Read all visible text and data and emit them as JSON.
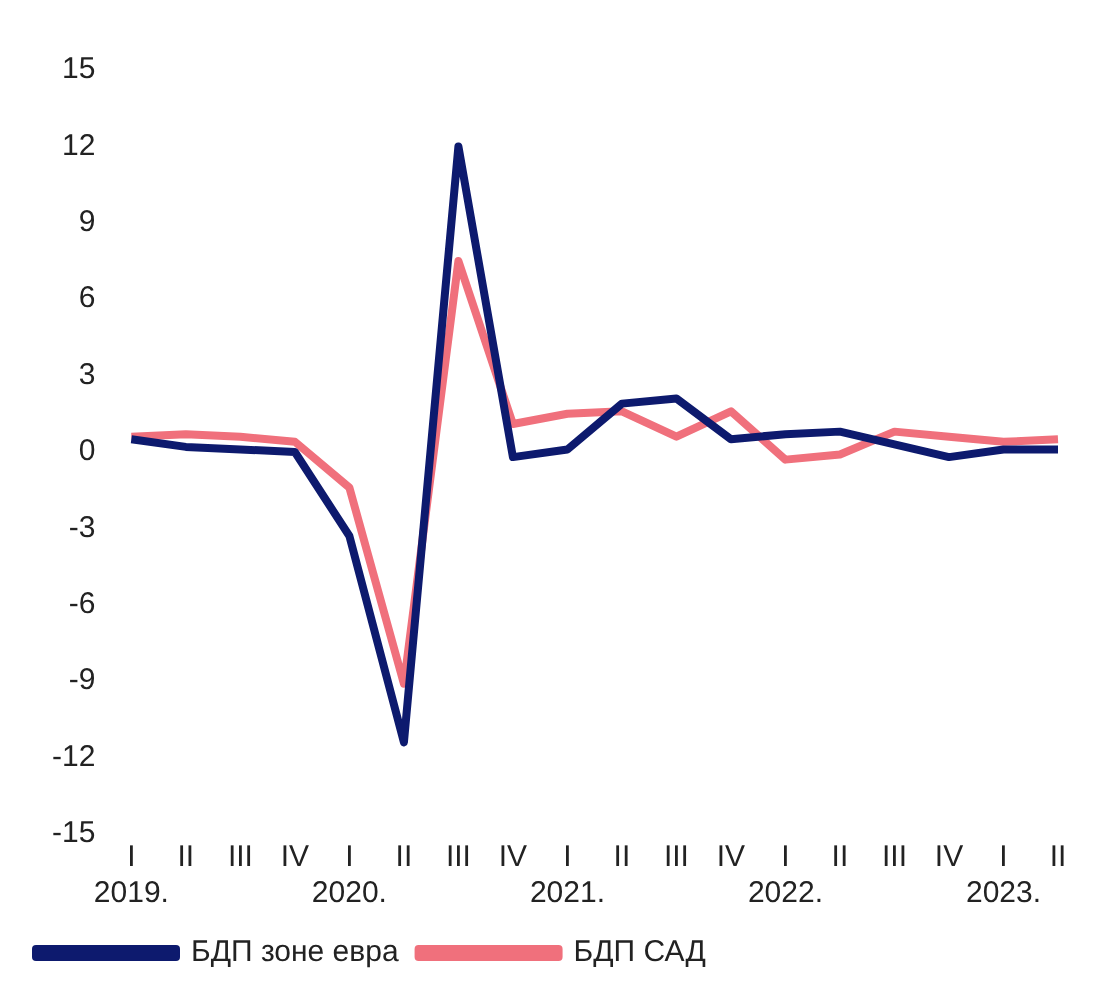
{
  "chart_data": {
    "type": "line",
    "categories": [
      "I\n2019.",
      "II",
      "III",
      "IV",
      "I\n2020.",
      "II",
      "III",
      "IV",
      "I\n2021.",
      "II",
      "III",
      "IV",
      "I\n2022.",
      "II",
      "III",
      "IV",
      "I\n2023.",
      "II"
    ],
    "series": [
      {
        "name": "БДП зоне евра",
        "color": "#0d1a6e",
        "values": [
          0.5,
          0.2,
          0.1,
          0,
          -3.3,
          -11.4,
          12.0,
          -0.2,
          0.1,
          1.9,
          2.1,
          0.5,
          0.7,
          0.8,
          0.3,
          -0.2,
          0.1,
          0.1
        ]
      },
      {
        "name": "БДП САД",
        "color": "#f0707c",
        "values": [
          0.6,
          0.7,
          0.6,
          0.4,
          -1.4,
          -9.1,
          7.5,
          1.1,
          1.5,
          1.6,
          0.6,
          1.6,
          -0.3,
          -0.1,
          0.8,
          0.6,
          0.4,
          0.5
        ]
      }
    ],
    "ylim": [
      -15,
      15
    ],
    "yticks": [
      -15,
      -12,
      -9,
      -6,
      -3,
      0,
      3,
      6,
      9,
      12,
      15
    ],
    "grid": false,
    "legend": "bottom left",
    "marker": "none",
    "line_style": "solid"
  }
}
